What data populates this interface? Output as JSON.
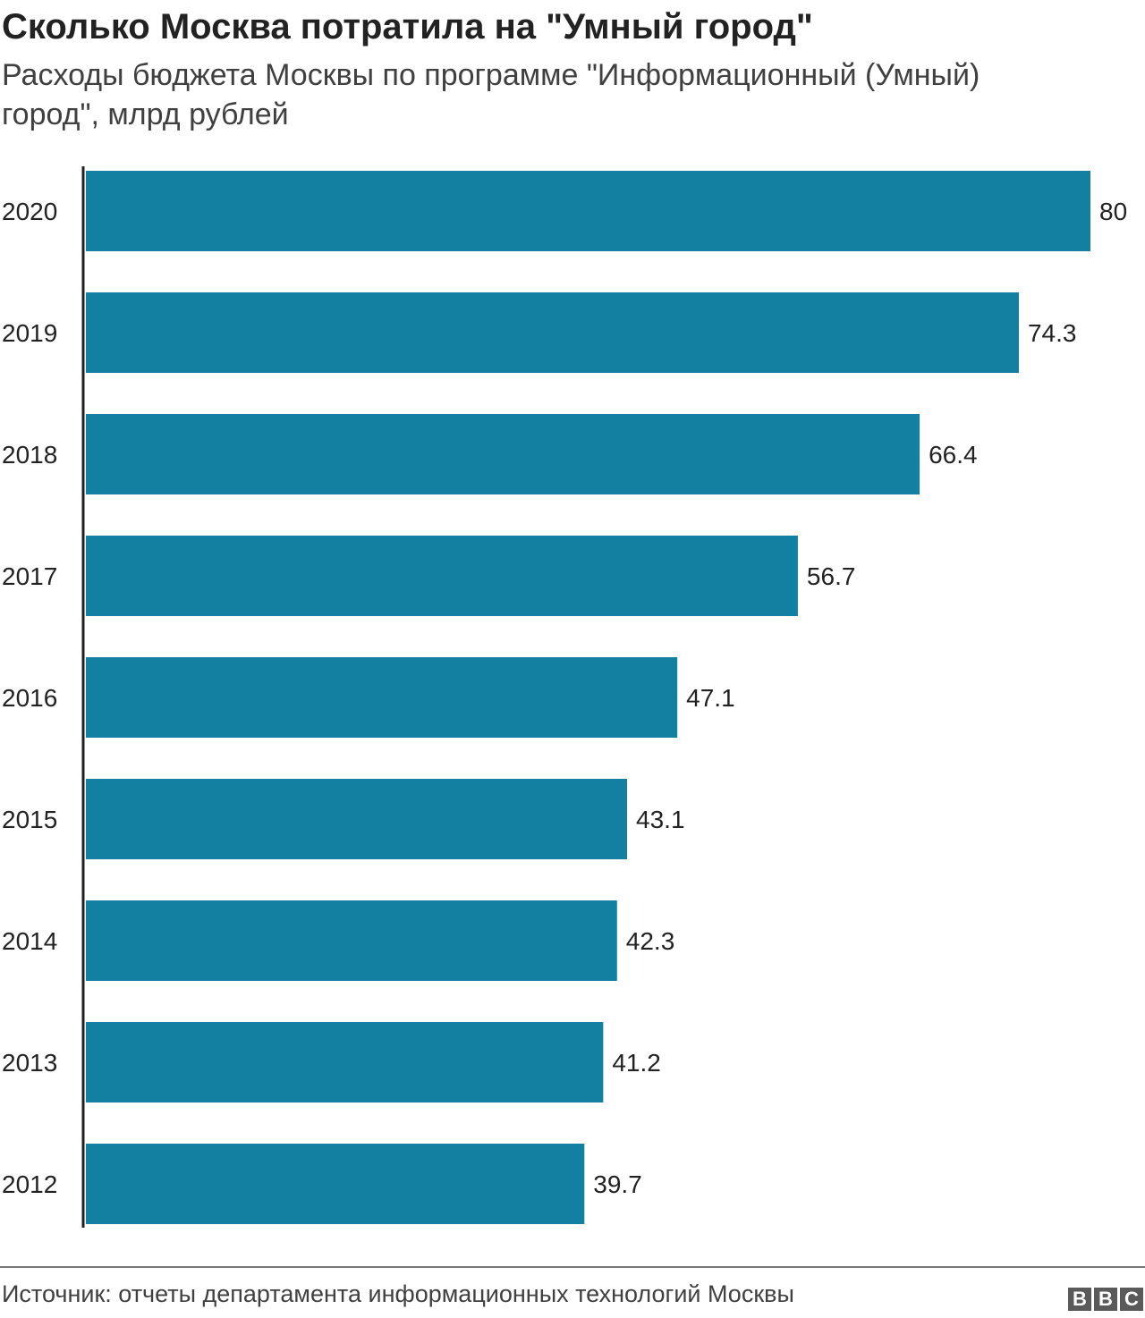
{
  "chart_data": {
    "type": "bar",
    "orientation": "horizontal",
    "title": "Сколько Москва потратила на \"Умный город\"",
    "subtitle": "Расходы бюджета Москвы по программе \"Информационный (Умный) город\", млрд рублей",
    "categories": [
      "2020",
      "2019",
      "2018",
      "2017",
      "2016",
      "2015",
      "2014",
      "2013",
      "2012"
    ],
    "values": [
      80,
      74.3,
      66.4,
      56.7,
      47.1,
      43.1,
      42.3,
      41.2,
      39.7
    ],
    "labels": [
      "80",
      "74.3",
      "66.4",
      "56.7",
      "47.1",
      "43.1",
      "42.3",
      "41.2",
      "39.7"
    ],
    "xlim": [
      0,
      80
    ],
    "grid": false,
    "color": "#1380a1"
  },
  "footer": {
    "source": "Источник: отчеты департамента информационных технологий Москвы",
    "logo": [
      "B",
      "B",
      "C"
    ]
  }
}
